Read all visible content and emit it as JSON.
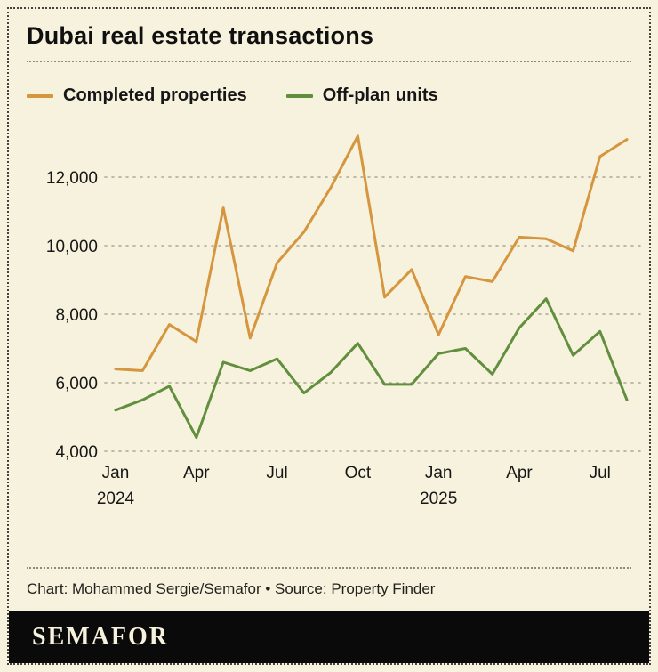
{
  "header": {
    "title": "Dubai real estate transactions"
  },
  "caption": {
    "text": "Chart: Mohammed Sergie/Semafor • Source: Property Finder"
  },
  "footer": {
    "logo_text": "SEMAFOR"
  },
  "colors": {
    "background": "#f7f2dd",
    "completed_line": "#d6953f",
    "offplan_line": "#618f3d",
    "grid": "#aca796",
    "text": "#161616",
    "logo_bar": "#0a0a0a"
  },
  "chart_data": {
    "type": "line",
    "title": "Dubai real estate transactions",
    "x": [
      "Jan 2024",
      "Feb 2024",
      "Mar 2024",
      "Apr 2024",
      "May 2024",
      "Jun 2024",
      "Jul 2024",
      "Aug 2024",
      "Sep 2024",
      "Oct 2024",
      "Nov 2024",
      "Dec 2024",
      "Jan 2025",
      "Feb 2025",
      "Mar 2025",
      "Apr 2025",
      "May 2025",
      "Jun 2025",
      "Jul 2025",
      "Aug 2025"
    ],
    "series": [
      {
        "name": "Completed properties",
        "color": "#d6953f",
        "values": [
          6400,
          6350,
          7700,
          7200,
          11100,
          7300,
          9500,
          10400,
          11700,
          13200,
          8500,
          9300,
          7400,
          9100,
          8950,
          10250,
          10200,
          9850,
          12600,
          13100
        ]
      },
      {
        "name": "Off-plan units",
        "color": "#618f3d",
        "values": [
          5200,
          5500,
          5900,
          4400,
          6600,
          6350,
          6700,
          5700,
          6300,
          7150,
          5950,
          5950,
          6850,
          7000,
          6250,
          7600,
          8450,
          6800,
          7500,
          5500
        ]
      }
    ],
    "ylim": [
      4000,
      13500
    ],
    "yticks": [
      4000,
      6000,
      8000,
      10000,
      12000
    ],
    "xticks": [
      {
        "index": 0,
        "label": "Jan",
        "year": "2024"
      },
      {
        "index": 3,
        "label": "Apr"
      },
      {
        "index": 6,
        "label": "Jul"
      },
      {
        "index": 9,
        "label": "Oct"
      },
      {
        "index": 12,
        "label": "Jan",
        "year": "2025"
      },
      {
        "index": 15,
        "label": "Apr"
      },
      {
        "index": 18,
        "label": "Jul"
      }
    ],
    "grid": "horizontal-dotted",
    "legend_position": "top"
  }
}
